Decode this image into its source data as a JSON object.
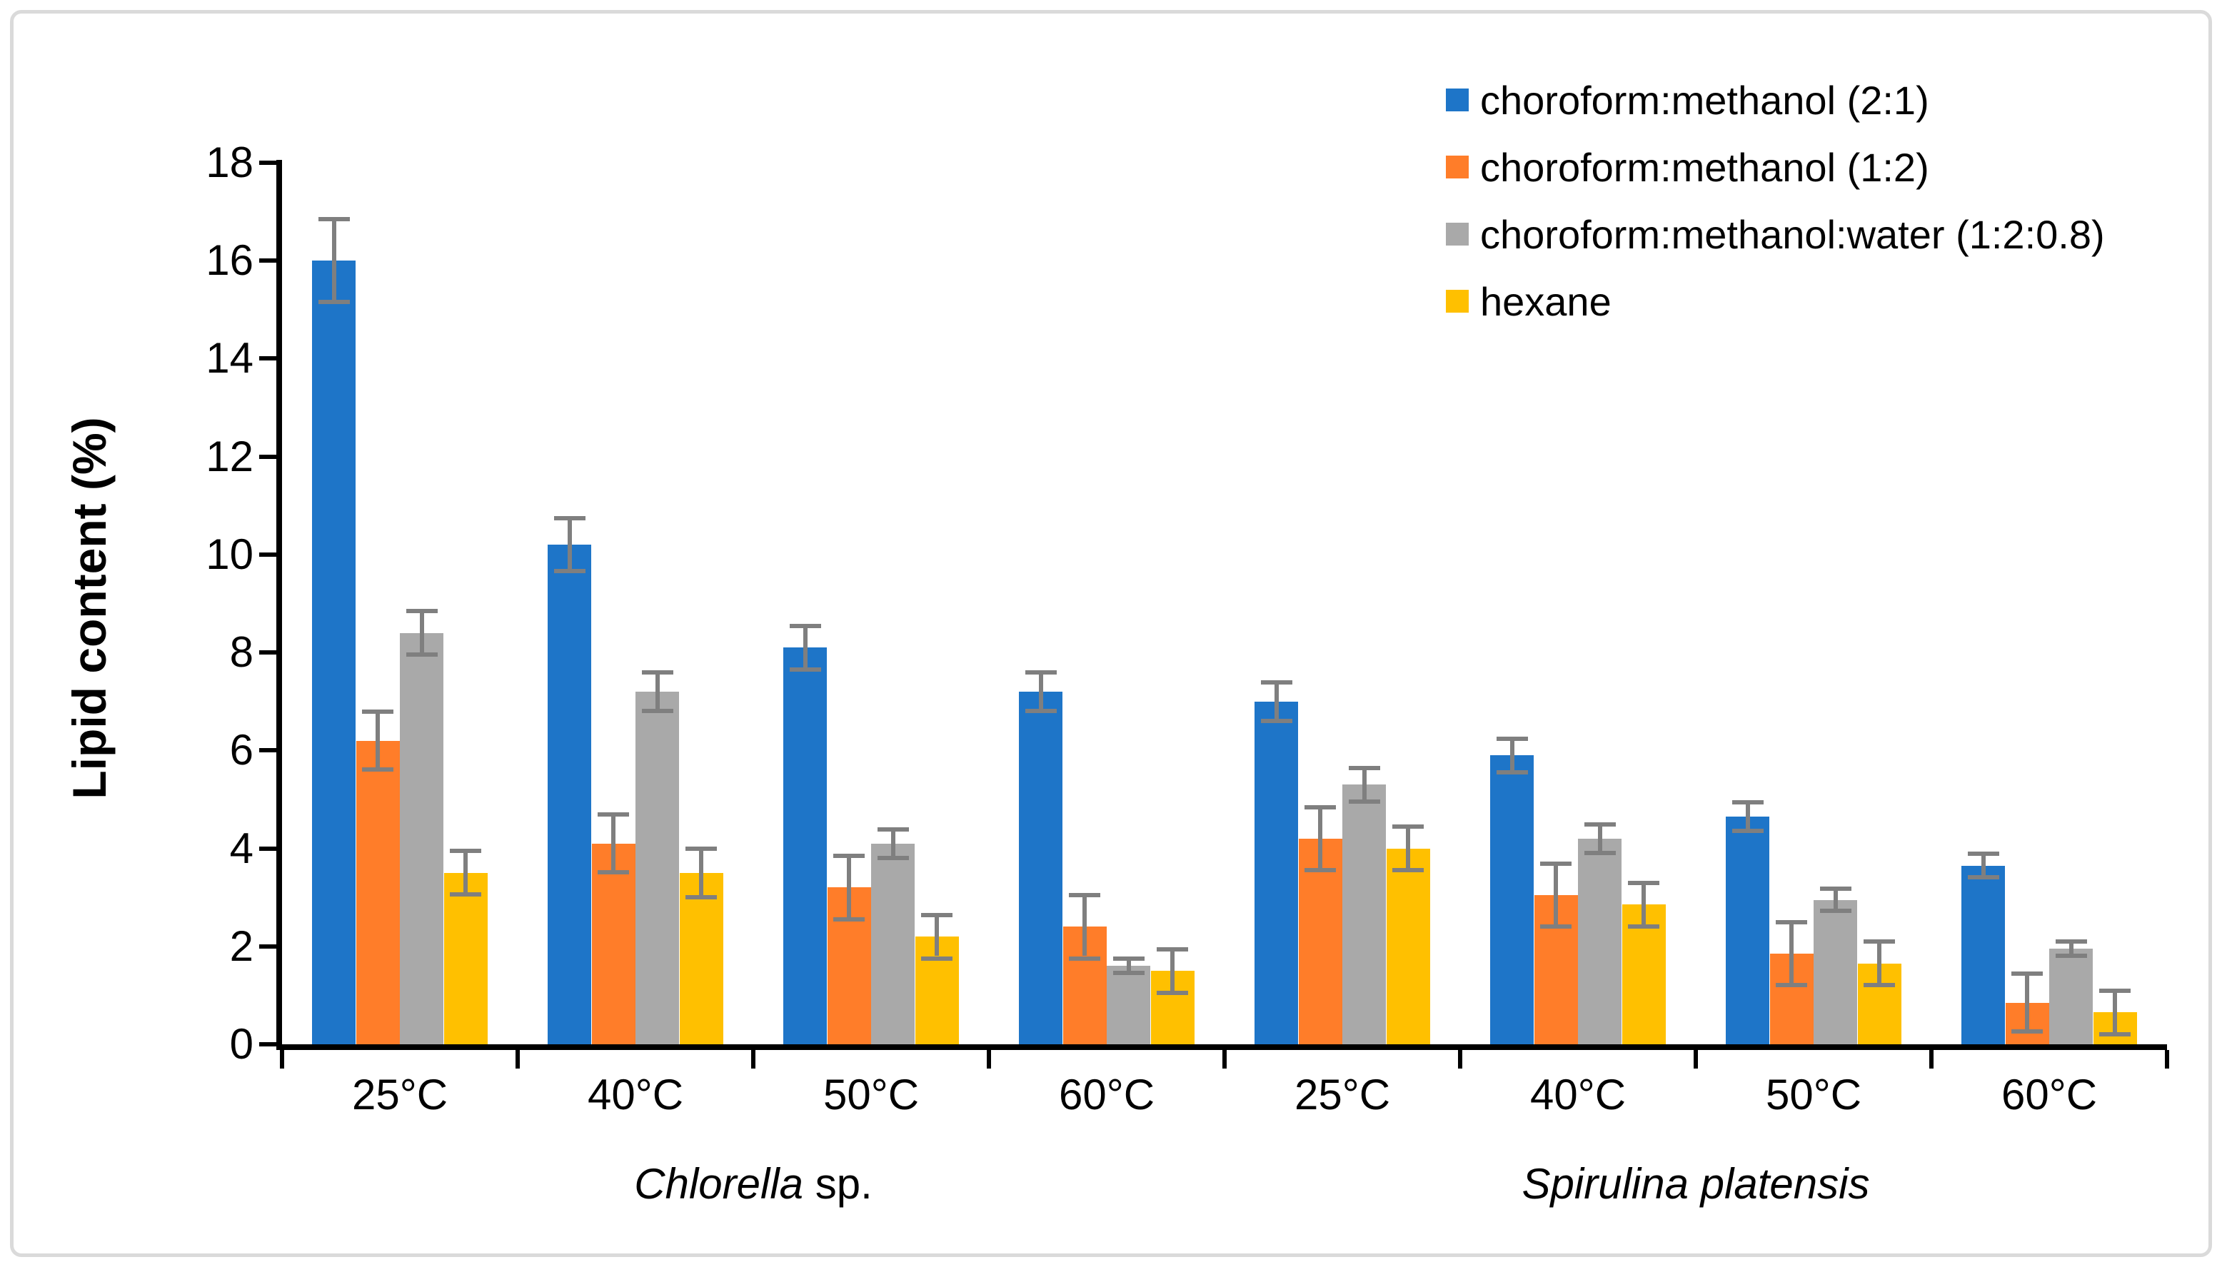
{
  "figure": {
    "background": "#ffffff",
    "border_color": "#dadada"
  },
  "chart_data": {
    "type": "bar",
    "title": "",
    "xlabel": "",
    "ylabel": "Lipid content (%)",
    "ylim": [
      0,
      18
    ],
    "ytick_step": 2,
    "grid": false,
    "legend_position": "top-right",
    "axis_color": "#000000",
    "error_bar_color": "#7f7f7f",
    "categories": [
      "25°C",
      "40°C",
      "50°C",
      "60°C",
      "25°C",
      "40°C",
      "50°C",
      "60°C"
    ],
    "species": [
      {
        "italic": "Chlorella",
        "roman": " sp.",
        "category_span": [
          0,
          3
        ]
      },
      {
        "italic": "Spirulina platensis",
        "roman": "",
        "category_span": [
          4,
          7
        ]
      }
    ],
    "series": [
      {
        "name": "choroform:methanol (2:1)",
        "color": "#1e75c8",
        "values": [
          16.0,
          10.2,
          8.1,
          7.2,
          7.0,
          5.9,
          4.65,
          3.65
        ],
        "errors": [
          0.8,
          0.5,
          0.4,
          0.35,
          0.35,
          0.3,
          0.25,
          0.2
        ]
      },
      {
        "name": "choroform:methanol (1:2)",
        "color": "#ff7d29",
        "values": [
          6.2,
          4.1,
          3.2,
          2.4,
          4.2,
          3.05,
          1.85,
          0.85
        ],
        "errors": [
          0.55,
          0.55,
          0.6,
          0.6,
          0.6,
          0.6,
          0.6,
          0.55
        ]
      },
      {
        "name": "choroform:methanol:water (1:2:0.8)",
        "color": "#a9a9a9",
        "values": [
          8.4,
          7.2,
          4.1,
          1.6,
          5.3,
          4.2,
          2.95,
          1.95
        ],
        "errors": [
          0.4,
          0.35,
          0.25,
          0.1,
          0.3,
          0.25,
          0.18,
          0.1
        ]
      },
      {
        "name": "hexane",
        "color": "#ffc000",
        "values": [
          3.5,
          3.5,
          2.2,
          1.5,
          4.0,
          2.85,
          1.65,
          0.65
        ],
        "errors": [
          0.4,
          0.45,
          0.4,
          0.4,
          0.4,
          0.4,
          0.4,
          0.4
        ]
      }
    ]
  }
}
